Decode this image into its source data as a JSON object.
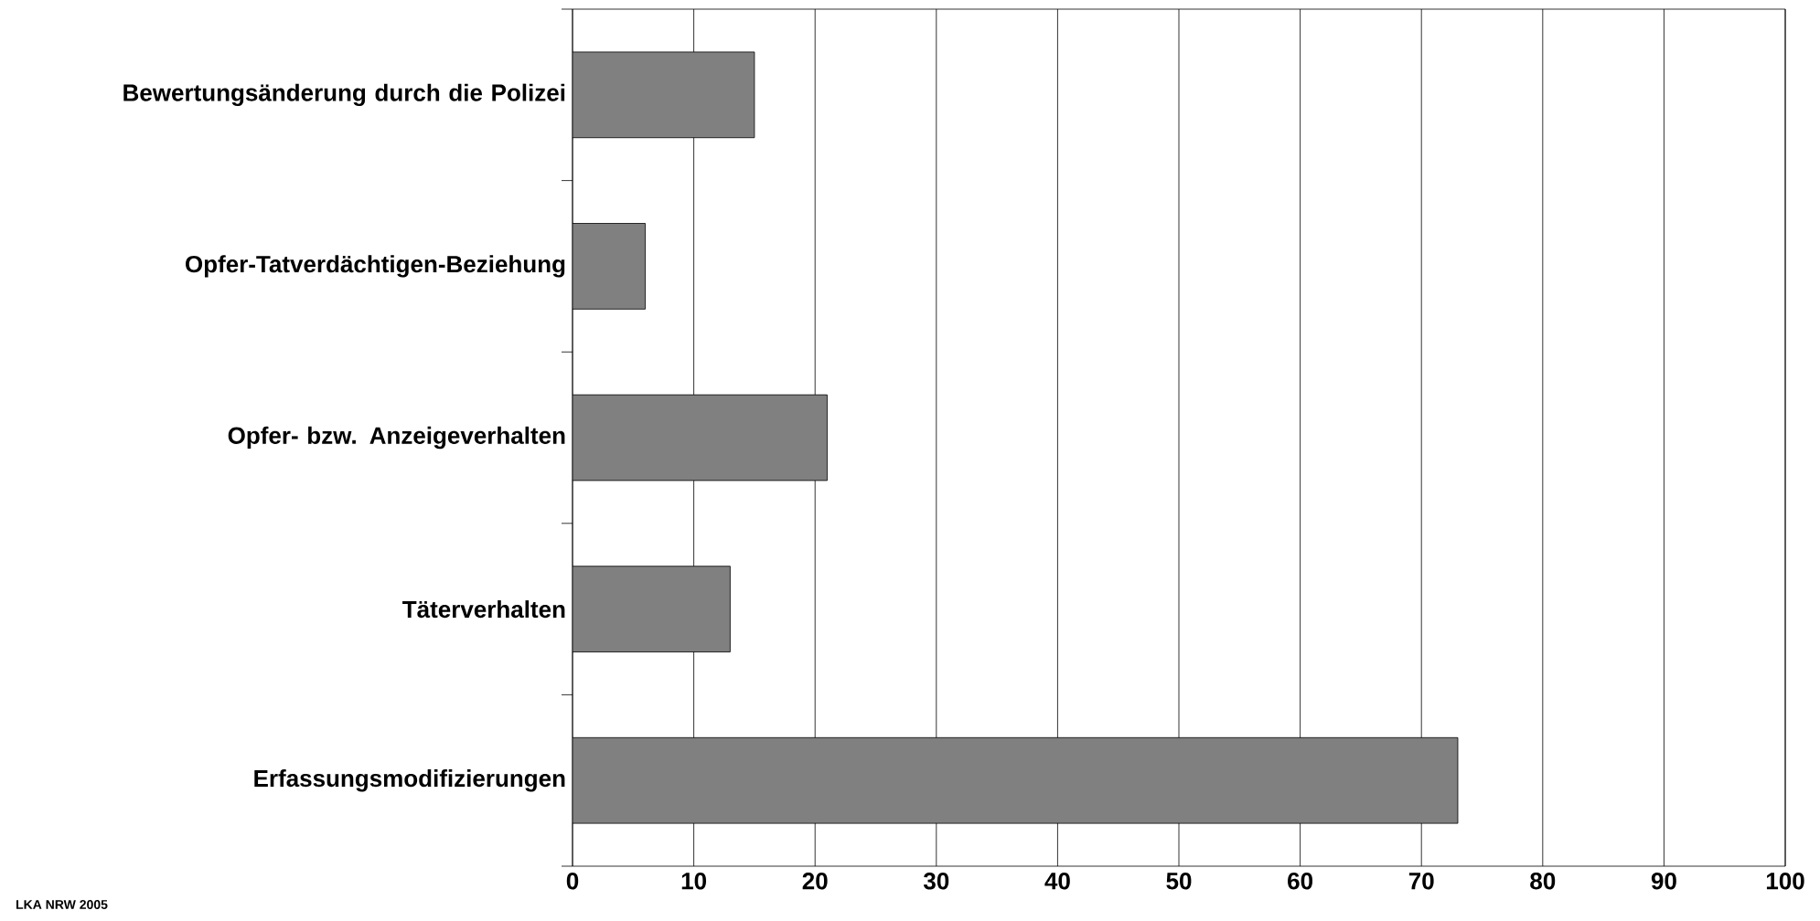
{
  "chart_data": {
    "type": "bar",
    "orientation": "horizontal",
    "categories": [
      "Bewertungsänderung durch die Polizei",
      "Opfer-Tatverdächtigen-Beziehung",
      "Opfer- bzw. Anzeigeverhalten",
      "Täterverhalten",
      "Erfassungsmodifizierungen"
    ],
    "values": [
      15,
      6,
      21,
      13,
      73
    ],
    "color": "#808080",
    "xlim": [
      0,
      100
    ],
    "xticks": [
      0,
      10,
      20,
      30,
      40,
      50,
      60,
      70,
      80,
      90,
      100
    ],
    "grid": "x",
    "annotations": [
      "LKA NRW 2005"
    ]
  }
}
